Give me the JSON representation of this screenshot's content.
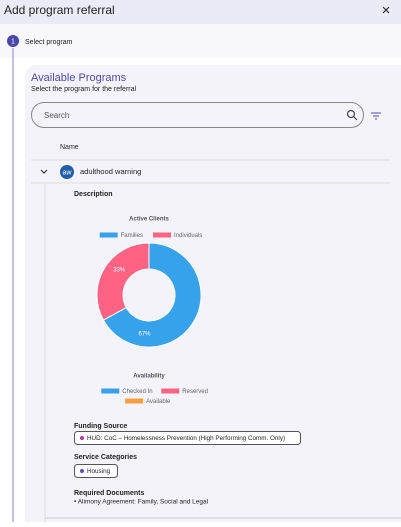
{
  "header": {
    "title": "Add program referral",
    "close": "×"
  },
  "stepper": {
    "number": "1",
    "label": "Select program"
  },
  "panel": {
    "title": "Available Programs",
    "subtitle": "Select the program for the referral",
    "search_placeholder": "Search"
  },
  "table": {
    "column": "Name"
  },
  "row": {
    "avatar": "aw",
    "name": "adulthood warning",
    "description_label": "Description"
  },
  "chart_data": {
    "type": "pie",
    "title": "Active Clients",
    "series": [
      {
        "name": "Families",
        "color": "#36a2eb",
        "values": [
          67
        ],
        "value_labels": [
          "67%"
        ]
      },
      {
        "name": "Individuals",
        "color": "#ff6384",
        "values": [
          33
        ],
        "value_labels": [
          "33%"
        ]
      }
    ]
  },
  "availability": {
    "title": "Availability",
    "legend": [
      {
        "name": "Checked In",
        "color": "#36a2eb"
      },
      {
        "name": "Reserved",
        "color": "#ff6384"
      },
      {
        "name": "Available",
        "color": "#ff9f40"
      }
    ]
  },
  "funding": {
    "label": "Funding Source",
    "chip": "HUD: CoC – Homelessness Prevention (High Performing Comm. Only)"
  },
  "services": {
    "label": "Service Categories",
    "chip": "Housing"
  },
  "documents": {
    "label": "Required Documents",
    "items": [
      "• Alimony Agreement: Family, Social and Legal"
    ]
  }
}
